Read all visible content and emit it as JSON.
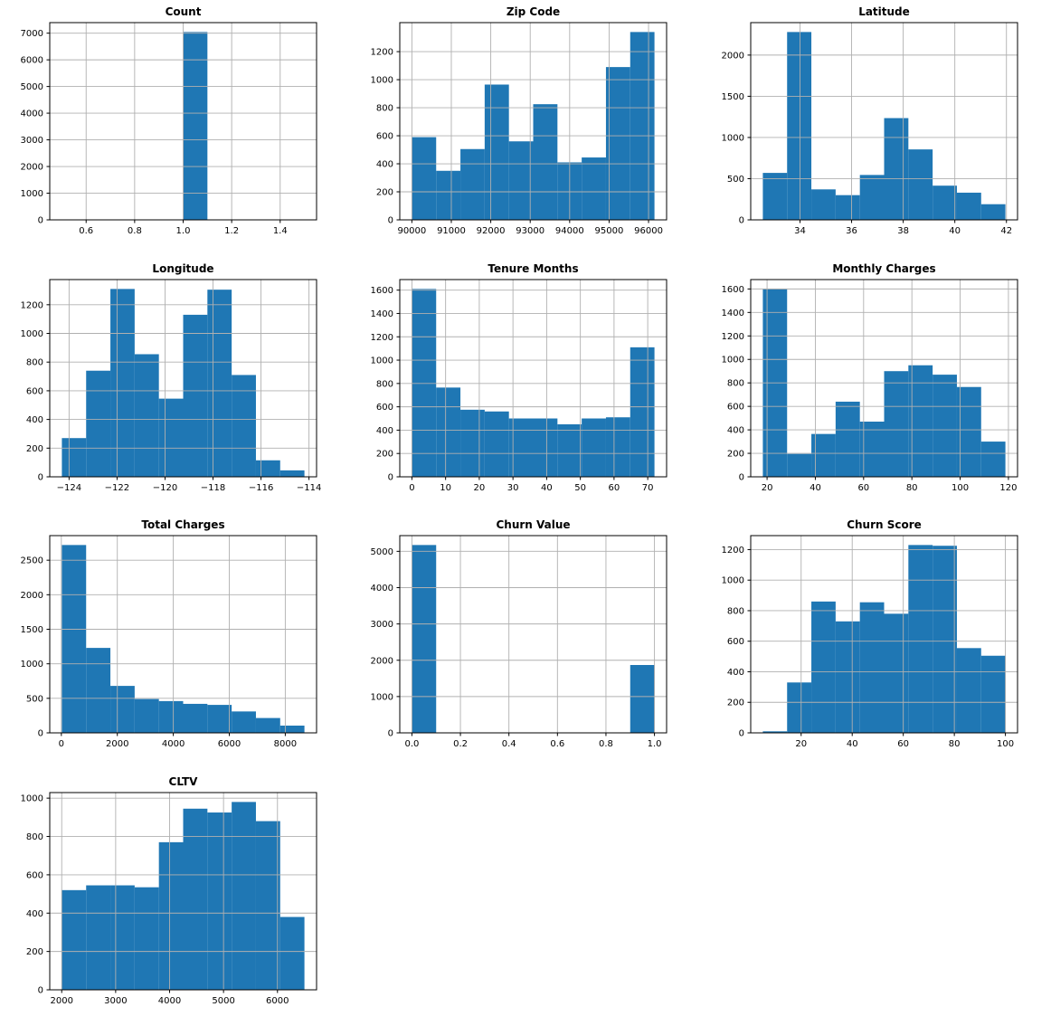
{
  "figure": {
    "background": "#ffffff",
    "layout_note": "4x3 grid of histogram subplots, last row has one plot"
  },
  "colors": {
    "bar": "#1f77b4",
    "grid": "#b0b0b0",
    "spine": "#000000",
    "text": "#000000"
  },
  "chart_data": [
    {
      "id": "count",
      "type": "bar",
      "title": "Count",
      "bin_range": [
        0.5,
        1.5
      ],
      "values": [
        0,
        0,
        0,
        0,
        0,
        7043,
        0,
        0,
        0,
        0
      ],
      "xticks": [
        0.6,
        0.8,
        1.0,
        1.2,
        1.4
      ],
      "xtick_labels": [
        "0.6",
        "0.8",
        "1.0",
        "1.2",
        "1.4"
      ],
      "yticks": [
        0,
        1000,
        2000,
        3000,
        4000,
        5000,
        6000,
        7000
      ],
      "ytick_labels": [
        "0",
        "1000",
        "2000",
        "3000",
        "4000",
        "5000",
        "6000",
        "7000"
      ],
      "grid": true,
      "legend": false
    },
    {
      "id": "zip-code",
      "type": "bar",
      "title": "Zip Code",
      "bin_range": [
        90001,
        96150
      ],
      "values": [
        590,
        350,
        505,
        965,
        560,
        825,
        410,
        445,
        1090,
        1340
      ],
      "xticks": [
        90000,
        91000,
        92000,
        93000,
        94000,
        95000,
        96000
      ],
      "xtick_labels": [
        "90000",
        "91000",
        "92000",
        "93000",
        "94000",
        "95000",
        "96000"
      ],
      "yticks": [
        0,
        200,
        400,
        600,
        800,
        1000,
        1200
      ],
      "ytick_labels": [
        "0",
        "200",
        "400",
        "600",
        "800",
        "1000",
        "1200"
      ],
      "grid": true,
      "legend": false
    },
    {
      "id": "latitude",
      "type": "bar",
      "title": "Latitude",
      "bin_range": [
        32.56,
        41.96
      ],
      "values": [
        570,
        2280,
        370,
        300,
        545,
        1235,
        855,
        415,
        330,
        190
      ],
      "xticks": [
        34,
        36,
        38,
        40,
        42
      ],
      "xtick_labels": [
        "34",
        "36",
        "38",
        "40",
        "42"
      ],
      "yticks": [
        0,
        500,
        1000,
        1500,
        2000
      ],
      "ytick_labels": [
        "0",
        "500",
        "1000",
        "1500",
        "2000"
      ],
      "grid": true,
      "legend": false
    },
    {
      "id": "longitude",
      "type": "bar",
      "title": "Longitude",
      "bin_range": [
        -124.3,
        -114.19
      ],
      "values": [
        270,
        740,
        1310,
        855,
        545,
        1130,
        1305,
        710,
        115,
        45
      ],
      "xticks": [
        -124,
        -122,
        -120,
        -118,
        -116,
        -114
      ],
      "xtick_labels": [
        "−124",
        "−122",
        "−120",
        "−118",
        "−116",
        "−114"
      ],
      "yticks": [
        0,
        200,
        400,
        600,
        800,
        1000,
        1200
      ],
      "ytick_labels": [
        "0",
        "200",
        "400",
        "600",
        "800",
        "1000",
        "1200"
      ],
      "grid": true,
      "legend": false
    },
    {
      "id": "tenure-months",
      "type": "bar",
      "title": "Tenure Months",
      "bin_range": [
        0,
        72
      ],
      "values": [
        1610,
        765,
        575,
        560,
        500,
        500,
        450,
        500,
        510,
        1110
      ],
      "xticks": [
        0,
        10,
        20,
        30,
        40,
        50,
        60,
        70
      ],
      "xtick_labels": [
        "0",
        "10",
        "20",
        "30",
        "40",
        "50",
        "60",
        "70"
      ],
      "yticks": [
        0,
        200,
        400,
        600,
        800,
        1000,
        1200,
        1400,
        1600
      ],
      "ytick_labels": [
        "0",
        "200",
        "400",
        "600",
        "800",
        "1000",
        "1200",
        "1400",
        "1600"
      ],
      "grid": true,
      "legend": false
    },
    {
      "id": "monthly-charges",
      "type": "bar",
      "title": "Monthly Charges",
      "bin_range": [
        18.25,
        118.75
      ],
      "values": [
        1600,
        195,
        365,
        640,
        470,
        900,
        950,
        870,
        765,
        300
      ],
      "xticks": [
        20,
        40,
        60,
        80,
        100,
        120
      ],
      "xtick_labels": [
        "20",
        "40",
        "60",
        "80",
        "100",
        "120"
      ],
      "yticks": [
        0,
        200,
        400,
        600,
        800,
        1000,
        1200,
        1400,
        1600
      ],
      "ytick_labels": [
        "0",
        "200",
        "400",
        "600",
        "800",
        "1000",
        "1200",
        "1400",
        "1600"
      ],
      "grid": true,
      "legend": false
    },
    {
      "id": "total-charges",
      "type": "bar",
      "title": "Total Charges",
      "bin_range": [
        18.8,
        8684.8
      ],
      "values": [
        2720,
        1230,
        680,
        490,
        460,
        420,
        405,
        310,
        215,
        105
      ],
      "xticks": [
        0,
        2000,
        4000,
        6000,
        8000
      ],
      "xtick_labels": [
        "0",
        "2000",
        "4000",
        "6000",
        "8000"
      ],
      "yticks": [
        0,
        500,
        1000,
        1500,
        2000,
        2500
      ],
      "ytick_labels": [
        "0",
        "500",
        "1000",
        "1500",
        "2000",
        "2500"
      ],
      "grid": true,
      "legend": false
    },
    {
      "id": "churn-value",
      "type": "bar",
      "title": "Churn Value",
      "bin_range": [
        0.0,
        1.0
      ],
      "values": [
        5174,
        0,
        0,
        0,
        0,
        0,
        0,
        0,
        0,
        1869
      ],
      "xticks": [
        0.0,
        0.2,
        0.4,
        0.6,
        0.8,
        1.0
      ],
      "xtick_labels": [
        "0.0",
        "0.2",
        "0.4",
        "0.6",
        "0.8",
        "1.0"
      ],
      "yticks": [
        0,
        1000,
        2000,
        3000,
        4000,
        5000
      ],
      "ytick_labels": [
        "0",
        "1000",
        "2000",
        "3000",
        "4000",
        "5000"
      ],
      "grid": true,
      "legend": false
    },
    {
      "id": "churn-score",
      "type": "bar",
      "title": "Churn Score",
      "bin_range": [
        5,
        100
      ],
      "values": [
        10,
        330,
        860,
        730,
        855,
        780,
        1230,
        1225,
        555,
        505
      ],
      "xticks": [
        20,
        40,
        60,
        80,
        100
      ],
      "xtick_labels": [
        "20",
        "40",
        "60",
        "80",
        "100"
      ],
      "yticks": [
        0,
        200,
        400,
        600,
        800,
        1000,
        1200
      ],
      "ytick_labels": [
        "0",
        "200",
        "400",
        "600",
        "800",
        "1000",
        "1200"
      ],
      "grid": true,
      "legend": false
    },
    {
      "id": "cltv",
      "type": "bar",
      "title": "CLTV",
      "bin_range": [
        2003,
        6500
      ],
      "values": [
        520,
        545,
        545,
        535,
        770,
        945,
        925,
        980,
        880,
        380
      ],
      "xticks": [
        2000,
        3000,
        4000,
        5000,
        6000
      ],
      "xtick_labels": [
        "2000",
        "3000",
        "4000",
        "5000",
        "6000"
      ],
      "yticks": [
        0,
        200,
        400,
        600,
        800,
        1000
      ],
      "ytick_labels": [
        "0",
        "200",
        "400",
        "600",
        "800",
        "1000"
      ],
      "grid": true,
      "legend": false
    }
  ]
}
